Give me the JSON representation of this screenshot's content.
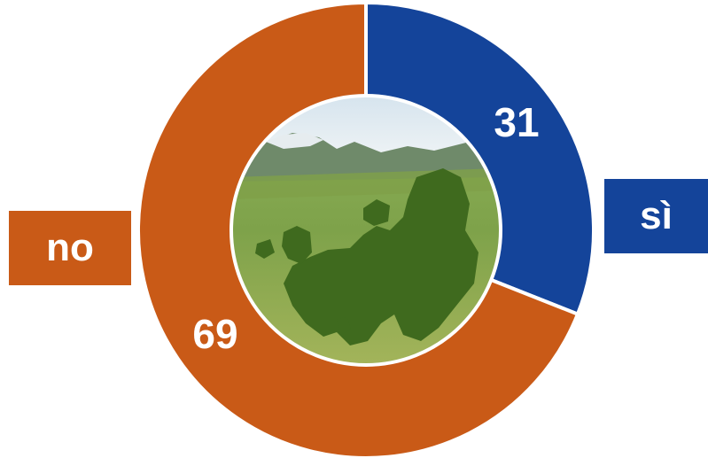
{
  "chart_data": {
    "type": "pie",
    "variant": "donut",
    "categories": [
      "sì",
      "no"
    ],
    "values": [
      31,
      69
    ],
    "data_labels": [
      "31",
      "69"
    ],
    "colors": [
      "#14449a",
      "#c95a17"
    ],
    "center_image": "europe-map-on-meadow-photo",
    "title": ""
  },
  "legend": {
    "no": {
      "label": "no",
      "color": "#c95a17"
    },
    "si": {
      "label": "sì",
      "color": "#14449a"
    }
  }
}
